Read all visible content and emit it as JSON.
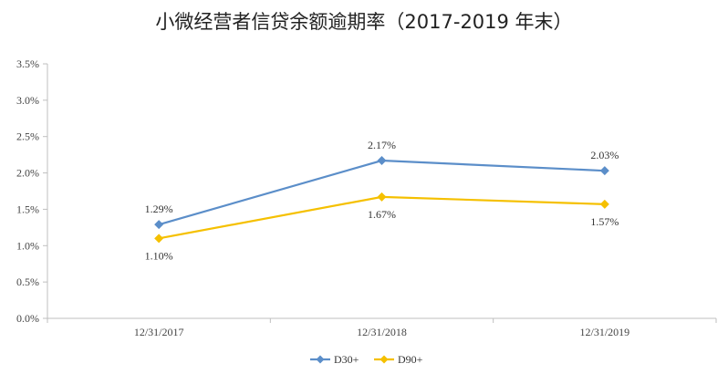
{
  "chart_data": {
    "type": "line",
    "title": "小微经营者信贷余额逾期率（2017-2019 年末）",
    "categories": [
      "12/31/2017",
      "12/31/2018",
      "12/31/2019"
    ],
    "series": [
      {
        "name": "D30+",
        "values": [
          1.29,
          2.17,
          2.03
        ],
        "labels": [
          "1.29%",
          "2.17%",
          "2.03%"
        ],
        "label_position": "above",
        "color": "#5B8EC9"
      },
      {
        "name": "D90+",
        "values": [
          1.1,
          1.67,
          1.57
        ],
        "labels": [
          "1.10%",
          "1.67%",
          "1.57%"
        ],
        "label_position": "below",
        "color": "#F5C000"
      }
    ],
    "ylim": [
      0,
      3.5
    ],
    "y_ticks": [
      0.0,
      0.5,
      1.0,
      1.5,
      2.0,
      2.5,
      3.0,
      3.5
    ],
    "y_tick_labels": [
      "0.0%",
      "0.5%",
      "1.0%",
      "1.5%",
      "2.0%",
      "2.5%",
      "3.0%",
      "3.5%"
    ],
    "grid": false,
    "legend": "bottom-center",
    "marker": "diamond"
  }
}
